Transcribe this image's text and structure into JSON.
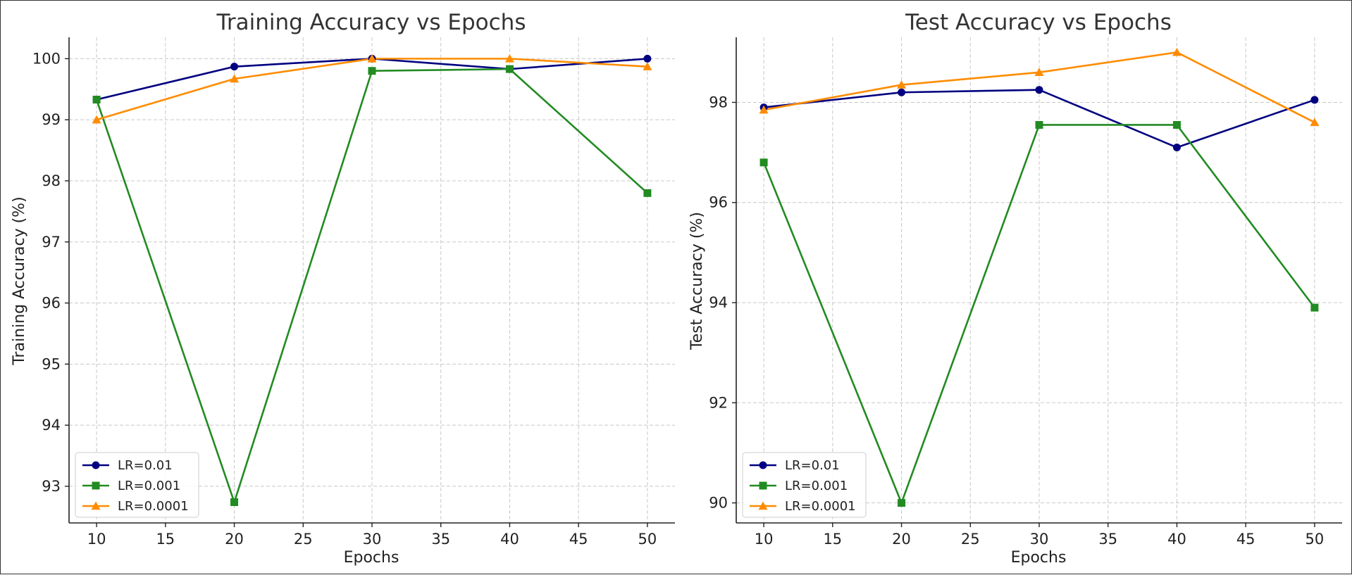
{
  "chart_data": [
    {
      "type": "line",
      "title": "Training Accuracy vs Epochs",
      "xlabel": "Epochs",
      "ylabel": "Training Accuracy (%)",
      "x": [
        10,
        20,
        30,
        40,
        50
      ],
      "xlim": [
        8,
        52
      ],
      "ylim": [
        92.4,
        100.35
      ],
      "xticks": [
        10,
        15,
        20,
        25,
        30,
        35,
        40,
        45,
        50
      ],
      "yticks": [
        93,
        94,
        95,
        96,
        97,
        98,
        99,
        100
      ],
      "grid": true,
      "legend_position": "lower-left",
      "series": [
        {
          "name": "LR=0.01",
          "color": "#000080",
          "marker": "circle",
          "values": [
            99.33,
            99.87,
            100.0,
            99.83,
            100.0
          ]
        },
        {
          "name": "LR=0.001",
          "color": "#228B22",
          "marker": "square",
          "values": [
            99.33,
            92.74,
            99.8,
            99.83,
            97.8
          ]
        },
        {
          "name": "LR=0.0001",
          "color": "#FF8C00",
          "marker": "triangle",
          "values": [
            99.0,
            99.67,
            100.0,
            100.0,
            99.87
          ]
        }
      ]
    },
    {
      "type": "line",
      "title": "Test Accuracy vs Epochs",
      "xlabel": "Epochs",
      "ylabel": "Test Accuracy (%)",
      "x": [
        10,
        20,
        30,
        40,
        50
      ],
      "xlim": [
        8,
        52
      ],
      "ylim": [
        89.6,
        99.3
      ],
      "xticks": [
        10,
        15,
        20,
        25,
        30,
        35,
        40,
        45,
        50
      ],
      "yticks": [
        90,
        92,
        94,
        96,
        98
      ],
      "grid": true,
      "legend_position": "lower-left",
      "series": [
        {
          "name": "LR=0.01",
          "color": "#000080",
          "marker": "circle",
          "values": [
            97.9,
            98.2,
            98.25,
            97.1,
            98.05
          ]
        },
        {
          "name": "LR=0.001",
          "color": "#228B22",
          "marker": "square",
          "values": [
            96.8,
            90.0,
            97.55,
            97.55,
            93.9
          ]
        },
        {
          "name": "LR=0.0001",
          "color": "#FF8C00",
          "marker": "triangle",
          "values": [
            97.85,
            98.35,
            98.6,
            99.0,
            97.6
          ]
        }
      ]
    }
  ]
}
